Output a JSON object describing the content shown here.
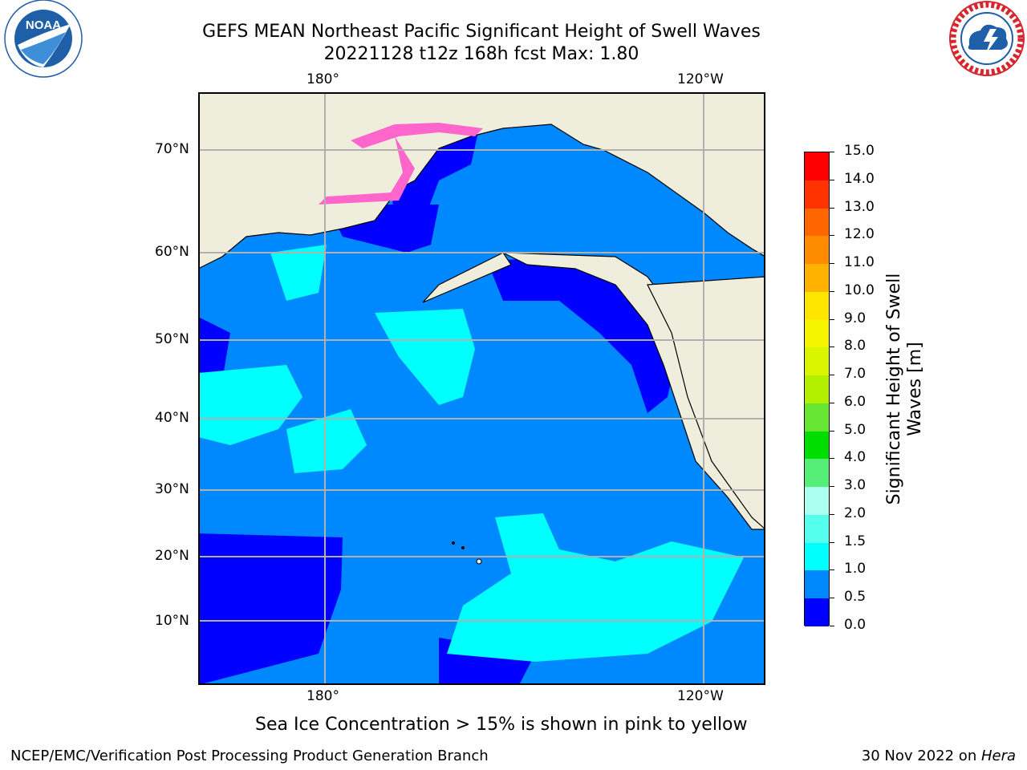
{
  "title": {
    "line1": "GEFS MEAN Northeast Pacific Significant Height of Swell Waves",
    "line2": "20221128 t12z 168h fcst   Max: 1.80"
  },
  "logos": {
    "left": {
      "text": "NOAA",
      "ring_text": "NATIONAL OCEANIC AND ATMOSPHERIC ADMINISTRATION · U.S. DEPARTMENT OF COMMERCE",
      "color": "#1f5fa8"
    },
    "right": {
      "ring_text": "NATIONAL WEATHER SERVICE",
      "color": "#d8262e"
    }
  },
  "map": {
    "lon_ticks_top": [
      "180°",
      "120°W"
    ],
    "lon_ticks_bottom": [
      "180°",
      "120°W"
    ],
    "lat_ticks": [
      "70°N",
      "60°N",
      "50°N",
      "40°N",
      "30°N",
      "20°N",
      "10°N"
    ],
    "land_color": "#efeedd",
    "grid_color": "#b0b0b0"
  },
  "colorbar": {
    "label_line1": "Significant Height of Swell",
    "label_line2": "Waves [m]",
    "ticks": [
      "15.0",
      "14.0",
      "13.0",
      "12.0",
      "11.0",
      "10.0",
      "9.0",
      "8.0",
      "7.0",
      "6.0",
      "5.0",
      "4.0",
      "3.0",
      "2.0",
      "1.5",
      "1.0",
      "0.5",
      "0.0"
    ],
    "colors": [
      "#ff0000",
      "#ff3300",
      "#ff6600",
      "#ff8c00",
      "#ffb300",
      "#ffe600",
      "#f5f500",
      "#d9f500",
      "#b3f000",
      "#66e633",
      "#00dd00",
      "#55ee77",
      "#aaffee",
      "#55ffee",
      "#00ffff",
      "#0088ff",
      "#0000ff"
    ]
  },
  "caption": "Sea Ice Concentration > 15% is shown in pink to yellow",
  "footer": {
    "left": "NCEP/EMC/Verification Post Processing Product Generation Branch",
    "right_prefix": "30 Nov 2022 on ",
    "right_italic": "Hera"
  }
}
